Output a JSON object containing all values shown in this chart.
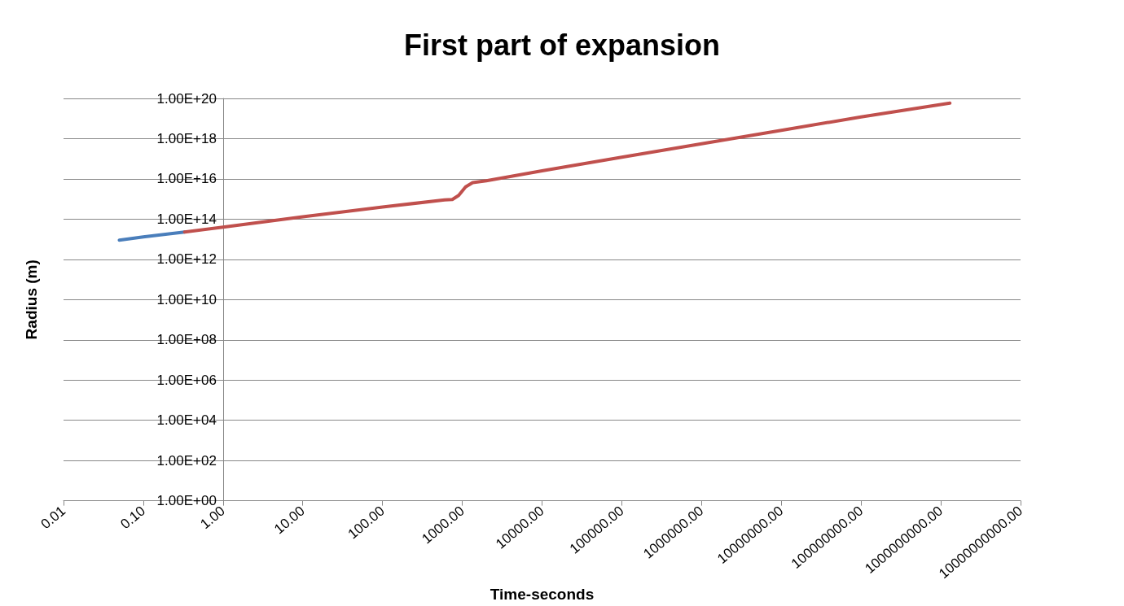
{
  "chart_data": {
    "type": "line",
    "title": "First part of expansion",
    "xlabel": "Time-seconds",
    "ylabel": "Radius (m)",
    "log": "xy",
    "grid": "y",
    "marker": "none",
    "line_style": "solid",
    "xlim": [
      0.01,
      10000000000
    ],
    "xticks": [
      {
        "value": 0.01,
        "label": "0.01"
      },
      {
        "value": 0.1,
        "label": "0.10"
      },
      {
        "value": 1,
        "label": "1.00"
      },
      {
        "value": 10,
        "label": "10.00"
      },
      {
        "value": 100,
        "label": "100.00"
      },
      {
        "value": 1000,
        "label": "1000.00"
      },
      {
        "value": 10000,
        "label": "10000.00"
      },
      {
        "value": 100000,
        "label": "100000.00"
      },
      {
        "value": 1000000,
        "label": "1000000.00"
      },
      {
        "value": 10000000,
        "label": "10000000.00"
      },
      {
        "value": 100000000,
        "label": "100000000.00"
      },
      {
        "value": 1000000000,
        "label": "1000000000.00"
      },
      {
        "value": 10000000000,
        "label": "10000000000.00"
      }
    ],
    "ylim": [
      1,
      1e+20
    ],
    "yticks": [
      {
        "value": 1,
        "label": "1.00E+00"
      },
      {
        "value": 100,
        "label": "1.00E+02"
      },
      {
        "value": 10000,
        "label": "1.00E+04"
      },
      {
        "value": 1000000,
        "label": "1.00E+06"
      },
      {
        "value": 100000000,
        "label": "1.00E+08"
      },
      {
        "value": 10000000000.0,
        "label": "1.00E+10"
      },
      {
        "value": 1000000000000.0,
        "label": "1.00E+12"
      },
      {
        "value": 100000000000000.0,
        "label": "1.00E+14"
      },
      {
        "value": 1e+16,
        "label": "1.00E+16"
      },
      {
        "value": 1e+18,
        "label": "1.00E+18"
      },
      {
        "value": 1e+20,
        "label": "1.00E+20"
      }
    ],
    "series": [
      {
        "color": "#4a7ebb",
        "x": [
          0.05,
          0.1,
          0.2,
          0.33
        ],
        "values": [
          9000000000000.0,
          13000000000000.0,
          18000000000000.0,
          23000000000000.0
        ]
      },
      {
        "color": "#c0504d",
        "x": [
          0.33,
          1,
          10,
          100,
          600,
          750,
          900,
          1100,
          1350,
          2000,
          10000,
          100000,
          1000000,
          10000000,
          100000000,
          1300000000
        ],
        "values": [
          23000000000000.0,
          40000000000000.0,
          130000000000000.0,
          400000000000000.0,
          900000000000000.0,
          950000000000000.0,
          1500000000000000.0,
          4000000000000000.0,
          6500000000000000.0,
          8000000000000000.0,
          2.5e+16,
          1.2e+17,
          5.6e+17,
          2.6e+18,
          1.2e+19,
          5.8e+19
        ]
      }
    ]
  }
}
